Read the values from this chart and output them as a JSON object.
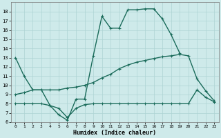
{
  "xlabel": "Humidex (Indice chaleur)",
  "line_top_x": [
    0,
    1,
    2,
    3,
    4,
    5,
    6,
    7,
    8,
    9,
    10,
    11,
    12,
    13,
    14,
    15,
    16,
    17,
    18,
    19
  ],
  "line_top_y": [
    13,
    11,
    9.5,
    9.5,
    7.8,
    6.8,
    6.2,
    8.5,
    8.5,
    13.2,
    17.5,
    16.2,
    16.2,
    18.2,
    18.2,
    18.3,
    18.3,
    17.2,
    15.5,
    13.5
  ],
  "line_mid_x": [
    0,
    1,
    2,
    3,
    4,
    5,
    6,
    7,
    8,
    9,
    10,
    11,
    12,
    13,
    14,
    15,
    16,
    17,
    18,
    19,
    20,
    21,
    22,
    23
  ],
  "line_mid_y": [
    9.0,
    9.2,
    9.5,
    9.5,
    9.5,
    9.5,
    9.7,
    9.8,
    10.0,
    10.3,
    10.8,
    11.2,
    11.8,
    12.2,
    12.5,
    12.7,
    12.9,
    13.1,
    13.2,
    13.35,
    13.2,
    10.7,
    9.4,
    8.3
  ],
  "line_bot_x": [
    0,
    1,
    2,
    3,
    4,
    5,
    6,
    7,
    8,
    9,
    10,
    11,
    12,
    13,
    14,
    15,
    16,
    17,
    18,
    19,
    20,
    21,
    22,
    23
  ],
  "line_bot_y": [
    8.0,
    8.0,
    8.0,
    8.0,
    7.8,
    7.5,
    6.5,
    7.5,
    7.9,
    8.0,
    8.0,
    8.0,
    8.0,
    8.0,
    8.0,
    8.0,
    8.0,
    8.0,
    8.0,
    8.0,
    8.0,
    9.5,
    8.7,
    8.2
  ],
  "line_color": "#1a6b5a",
  "bg_color": "#ceeaea",
  "grid_color": "#add4d4",
  "ylim": [
    6,
    19
  ],
  "xlim_min": -0.5,
  "xlim_max": 23.5,
  "yticks": [
    6,
    7,
    8,
    9,
    10,
    11,
    12,
    13,
    14,
    15,
    16,
    17,
    18
  ],
  "xticks": [
    0,
    1,
    2,
    3,
    4,
    5,
    6,
    7,
    8,
    9,
    10,
    11,
    12,
    13,
    14,
    15,
    16,
    17,
    18,
    19,
    20,
    21,
    22,
    23
  ],
  "linewidth": 1.0,
  "markersize": 3.5
}
